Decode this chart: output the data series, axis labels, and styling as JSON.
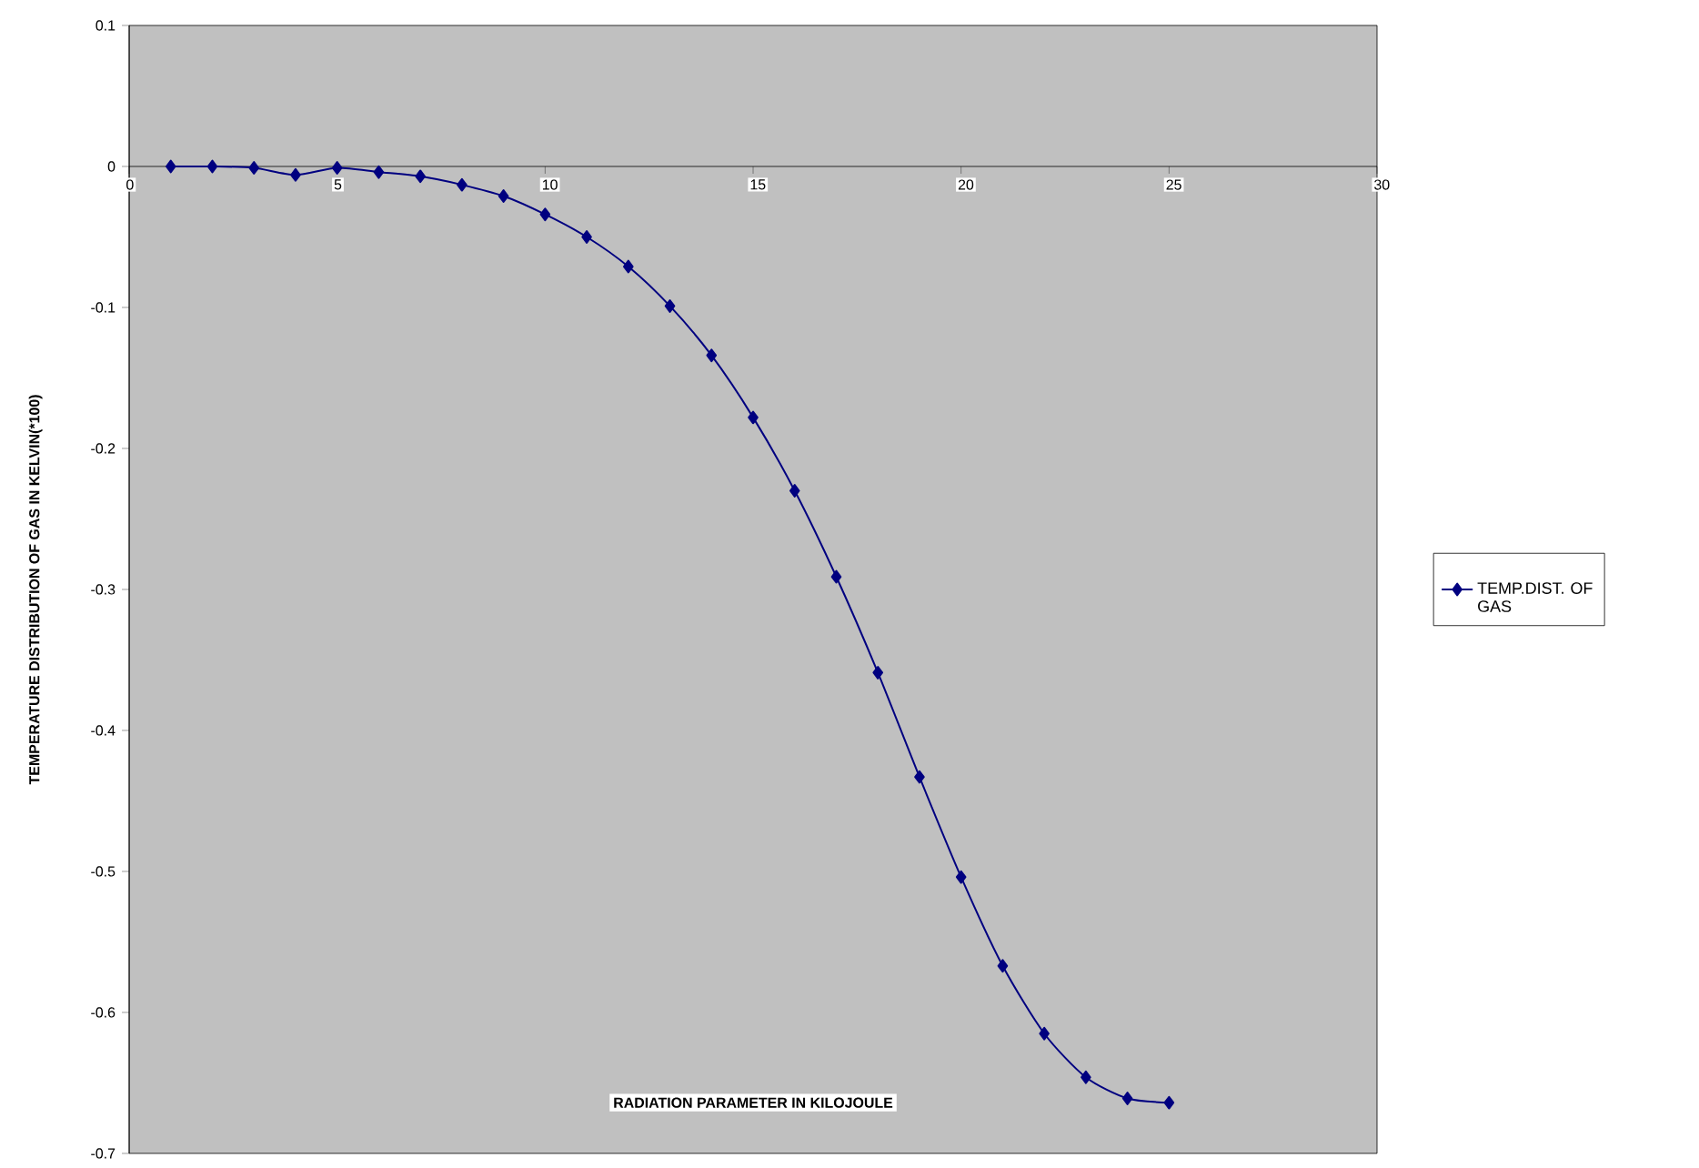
{
  "chart_data": {
    "type": "line",
    "xlabel": "RADIATION PARAMETER IN KILOJOULE",
    "ylabel": "TEMPERATURE DISTRIBUTION OF GAS IN KELVIN(*100)",
    "x": [
      1,
      2,
      3,
      4,
      5,
      6,
      7,
      8,
      9,
      10,
      11,
      12,
      13,
      14,
      15,
      16,
      17,
      18,
      19,
      20,
      21,
      22,
      23,
      24,
      25
    ],
    "series": [
      {
        "name": "TEMP.DIST. OF GAS",
        "color": "#000080",
        "values": [
          0,
          0,
          -0.001,
          -0.006,
          -0.001,
          -0.004,
          -0.007,
          -0.013,
          -0.021,
          -0.034,
          -0.05,
          -0.071,
          -0.099,
          -0.134,
          -0.178,
          -0.23,
          -0.291,
          -0.359,
          -0.433,
          -0.504,
          -0.567,
          -0.615,
          -0.646,
          -0.661,
          -0.664
        ]
      }
    ],
    "xlim": [
      0,
      30
    ],
    "xticks": [
      0,
      5,
      10,
      15,
      20,
      25,
      30
    ],
    "ylim": [
      -0.7,
      0.1
    ],
    "yticks": [
      0.1,
      0,
      -0.1,
      -0.2,
      -0.3,
      -0.4,
      -0.5,
      -0.6,
      -0.7
    ],
    "grid": false,
    "legend": "right",
    "marker": "diamond",
    "line_style": "solid"
  }
}
